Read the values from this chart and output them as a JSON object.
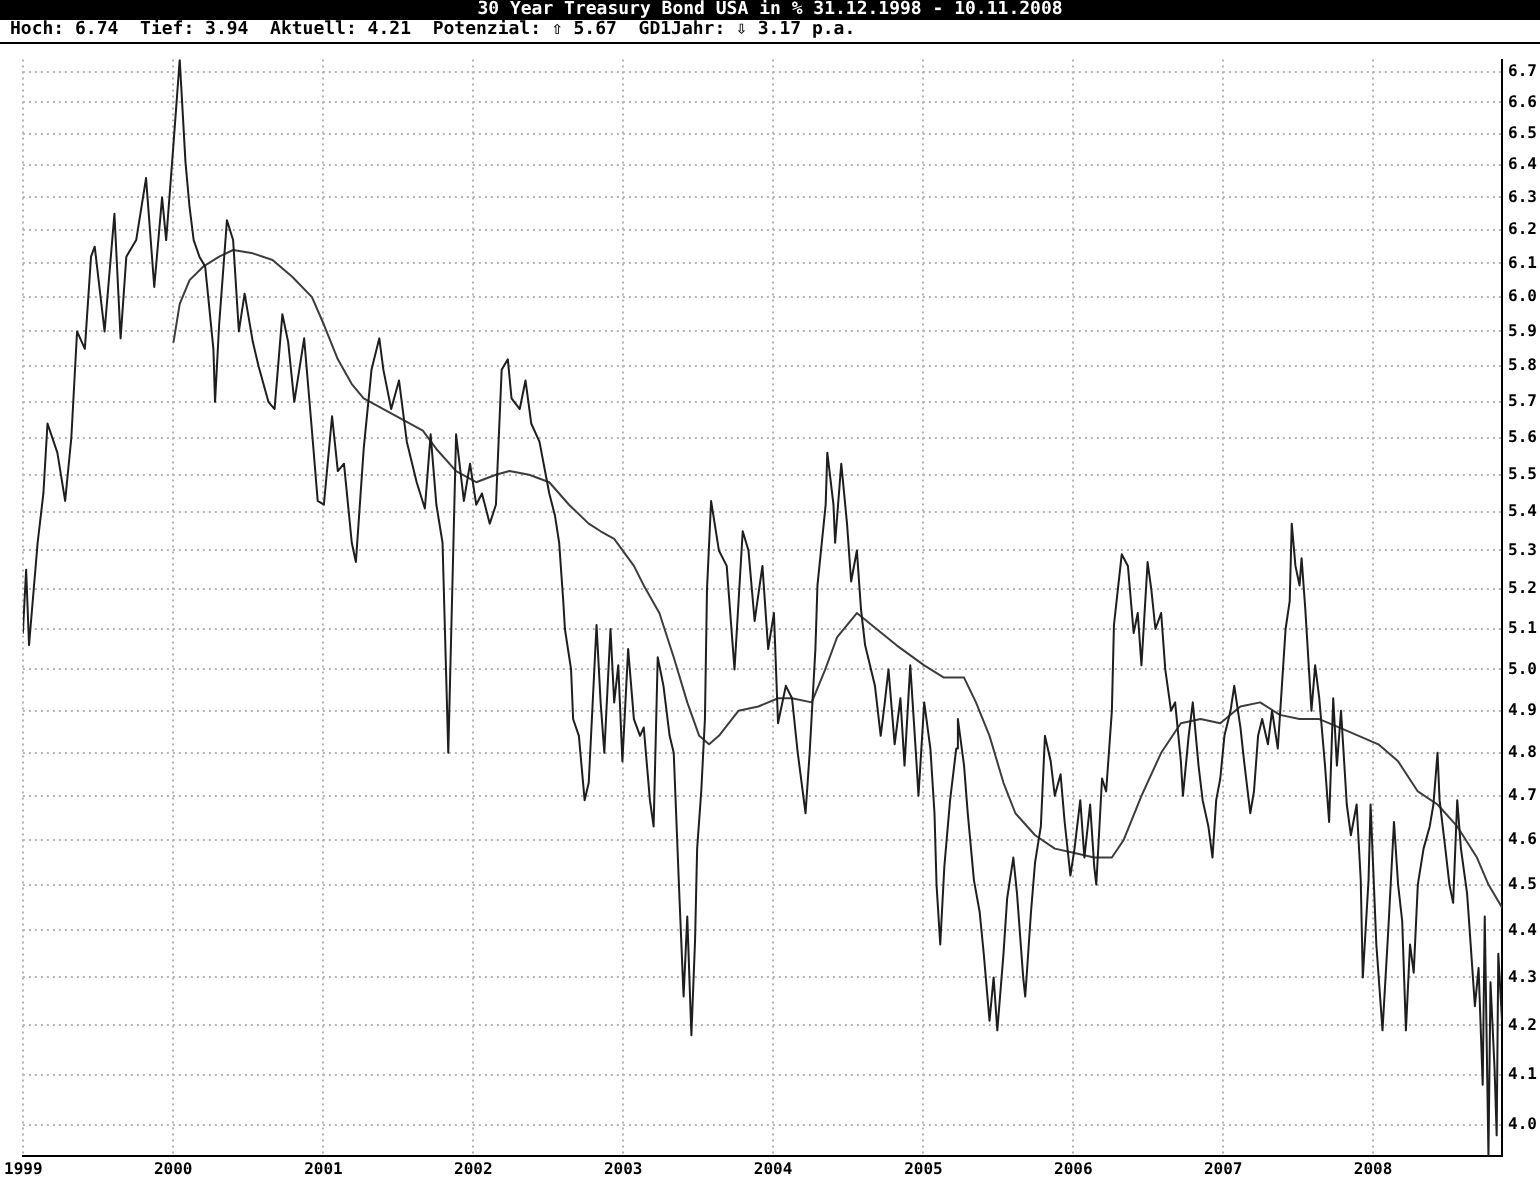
{
  "chart_data": {
    "type": "line",
    "title": "30 Year Treasury Bond USA in % 31.12.1998 - 10.11.2008",
    "subtitle": "Hoch: 6.74  Tief: 3.94  Aktuell: 4.21  Potenzial: ⇧ 5.67  GD1Jahr: ⇩ 3.17 p.a.",
    "log": true,
    "grid": true,
    "marker": "none",
    "xlim": [
      "1998-12-31",
      "2008-11-10"
    ],
    "xticks": [
      "1999",
      "2000",
      "2001",
      "2002",
      "2003",
      "2004",
      "2005",
      "2006",
      "2007",
      "2008"
    ],
    "ylim": [
      3.94,
      6.74
    ],
    "yticks": [
      {
        "value": 4.0,
        "label": "4.0"
      },
      4.1,
      4.2,
      4.3,
      4.4,
      4.5,
      4.6,
      4.7,
      4.8,
      4.9,
      {
        "value": 5.0,
        "label": "5.0"
      },
      5.1,
      5.2,
      5.3,
      5.4,
      5.5,
      5.6,
      5.7,
      5.8,
      5.9,
      {
        "value": 6.0,
        "label": "6.0"
      },
      6.1,
      6.2,
      6.3,
      6.4,
      6.5,
      6.6,
      6.7
    ],
    "series": [
      {
        "color": "#1e1e1e",
        "x": [
          "1998-12-31",
          "1999-01-08",
          "1999-01-15",
          "1999-02-05",
          "1999-02-19",
          "1999-03-01",
          "1999-03-25",
          "1999-04-13",
          "1999-04-28",
          "1999-05-12",
          "1999-05-31",
          "1999-06-15",
          "1999-06-24",
          "1999-07-18",
          "1999-08-11",
          "1999-08-26",
          "1999-09-09",
          "1999-10-03",
          "1999-10-27",
          "1999-11-16",
          "1999-12-05",
          "1999-12-15",
          "2000-01-02",
          "2000-01-17",
          "2000-01-31",
          "2000-02-10",
          "2000-02-20",
          "2000-03-05",
          "2000-03-19",
          "2000-04-08",
          "2000-04-12",
          "2000-04-22",
          "2000-05-11",
          "2000-05-26",
          "2000-06-09",
          "2000-06-23",
          "2000-07-13",
          "2000-07-27",
          "2000-08-20",
          "2000-09-04",
          "2000-09-23",
          "2000-10-07",
          "2000-10-22",
          "2000-11-15",
          "2000-12-04",
          "2000-12-18",
          "2001-01-02",
          "2001-01-22",
          "2001-02-05",
          "2001-02-20",
          "2001-03-11",
          "2001-03-21",
          "2001-04-09",
          "2001-04-28",
          "2001-05-17",
          "2001-05-27",
          "2001-06-15",
          "2001-07-04",
          "2001-07-23",
          "2001-08-16",
          "2001-09-05",
          "2001-09-19",
          "2001-10-03",
          "2001-10-18",
          "2001-11-01",
          "2001-11-20",
          "2001-12-09",
          "2001-12-24",
          "2002-01-08",
          "2002-01-22",
          "2002-02-10",
          "2002-02-25",
          "2002-03-11",
          "2002-03-26",
          "2002-04-04",
          "2002-04-24",
          "2002-05-08",
          "2002-05-22",
          "2002-06-11",
          "2002-07-05",
          "2002-07-19",
          "2002-07-29",
          "2002-08-08",
          "2002-08-12",
          "2002-08-27",
          "2002-09-01",
          "2002-09-15",
          "2002-09-29",
          "2002-10-09",
          "2002-10-28",
          "2002-11-07",
          "2002-11-16",
          "2002-12-01",
          "2002-12-10",
          "2002-12-20",
          "2002-12-30",
          "2003-01-13",
          "2003-01-27",
          "2003-02-11",
          "2003-02-20",
          "2003-03-07",
          "2003-03-16",
          "2003-03-26",
          "2003-04-09",
          "2003-04-24",
          "2003-05-04",
          "2003-05-18",
          "2003-05-28",
          "2003-06-06",
          "2003-06-16",
          "2003-06-25",
          "2003-06-30",
          "2003-07-10",
          "2003-07-19",
          "2003-07-24",
          "2003-08-03",
          "2003-08-22",
          "2003-09-10",
          "2003-09-29",
          "2003-10-19",
          "2003-11-02",
          "2003-11-17",
          "2003-12-06",
          "2003-12-20",
          "2004-01-03",
          "2004-01-13",
          "2004-02-01",
          "2004-02-16",
          "2004-03-01",
          "2004-03-20",
          "2004-03-30",
          "2004-04-13",
          "2004-04-18",
          "2004-05-08",
          "2004-05-12",
          "2004-05-27",
          "2004-05-31",
          "2004-06-15",
          "2004-06-29",
          "2004-07-09",
          "2004-07-23",
          "2004-08-02",
          "2004-08-12",
          "2004-09-05",
          "2004-09-19",
          "2004-09-29",
          "2004-10-08",
          "2004-10-23",
          "2004-11-06",
          "2004-11-16",
          "2004-11-30",
          "2004-12-15",
          "2004-12-20",
          "2005-01-03",
          "2005-01-18",
          "2005-01-28",
          "2005-02-02",
          "2005-02-11",
          "2005-02-21",
          "2005-03-07",
          "2005-03-22",
          "2005-03-26",
          "2005-04-10",
          "2005-04-19",
          "2005-05-04",
          "2005-05-18",
          "2005-05-28",
          "2005-06-11",
          "2005-06-21",
          "2005-06-30",
          "2005-07-15",
          "2005-07-24",
          "2005-08-08",
          "2005-08-17",
          "2005-09-01",
          "2005-09-06",
          "2005-09-20",
          "2005-09-30",
          "2005-10-14",
          "2005-10-24",
          "2005-11-07",
          "2005-11-17",
          "2005-12-01",
          "2005-12-11",
          "2005-12-25",
          "2006-01-04",
          "2006-01-18",
          "2006-01-28",
          "2006-02-11",
          "2006-02-21",
          "2006-02-26",
          "2006-03-12",
          "2006-03-22",
          "2006-04-05",
          "2006-04-10",
          "2006-04-29",
          "2006-05-14",
          "2006-05-28",
          "2006-06-07",
          "2006-06-16",
          "2006-07-01",
          "2006-07-10",
          "2006-07-20",
          "2006-08-03",
          "2006-08-13",
          "2006-08-27",
          "2006-09-06",
          "2006-09-20",
          "2006-09-25",
          "2006-10-09",
          "2006-10-19",
          "2006-11-02",
          "2006-11-12",
          "2006-11-26",
          "2006-12-06",
          "2006-12-15",
          "2006-12-25",
          "2007-01-04",
          "2007-01-19",
          "2007-01-28",
          "2007-02-12",
          "2007-02-21",
          "2007-03-08",
          "2007-03-17",
          "2007-03-27",
          "2007-04-06",
          "2007-04-20",
          "2007-04-30",
          "2007-05-14",
          "2007-05-24",
          "2007-06-02",
          "2007-06-12",
          "2007-06-17",
          "2007-06-26",
          "2007-07-06",
          "2007-07-11",
          "2007-07-20",
          "2007-08-04",
          "2007-08-13",
          "2007-08-23",
          "2007-09-06",
          "2007-09-16",
          "2007-09-26",
          "2007-10-05",
          "2007-10-15",
          "2007-10-29",
          "2007-11-08",
          "2007-11-22",
          "2007-12-02",
          "2007-12-07",
          "2007-12-21",
          "2007-12-26",
          "2008-01-09",
          "2008-01-24",
          "2008-02-07",
          "2008-02-21",
          "2008-03-02",
          "2008-03-12",
          "2008-03-21",
          "2008-03-31",
          "2008-04-09",
          "2008-04-19",
          "2008-05-03",
          "2008-05-18",
          "2008-05-27",
          "2008-06-06",
          "2008-06-11",
          "2008-06-25",
          "2008-07-05",
          "2008-07-14",
          "2008-07-24",
          "2008-08-02",
          "2008-08-17",
          "2008-08-21",
          "2008-09-05",
          "2008-09-14",
          "2008-09-24",
          "2008-09-29",
          "2008-10-08",
          "2008-10-13",
          "2008-10-23",
          "2008-10-28",
          "2008-11-01",
          "2008-11-10"
        ],
        "values": [
          5.09,
          5.25,
          5.06,
          5.32,
          5.45,
          5.64,
          5.56,
          5.43,
          5.6,
          5.9,
          5.85,
          6.12,
          6.15,
          5.9,
          6.25,
          5.88,
          6.12,
          6.17,
          6.36,
          6.03,
          6.3,
          6.17,
          6.47,
          6.74,
          6.41,
          6.27,
          6.17,
          6.12,
          6.09,
          5.85,
          5.7,
          5.92,
          6.23,
          6.17,
          5.9,
          6.01,
          5.87,
          5.8,
          5.7,
          5.68,
          5.95,
          5.87,
          5.7,
          5.88,
          5.62,
          5.43,
          5.42,
          5.66,
          5.51,
          5.53,
          5.32,
          5.27,
          5.57,
          5.79,
          5.88,
          5.79,
          5.68,
          5.76,
          5.59,
          5.48,
          5.41,
          5.61,
          5.42,
          5.32,
          4.8,
          5.61,
          5.43,
          5.53,
          5.42,
          5.45,
          5.37,
          5.42,
          5.79,
          5.82,
          5.71,
          5.68,
          5.76,
          5.64,
          5.59,
          5.45,
          5.39,
          5.32,
          5.17,
          5.1,
          5.0,
          4.88,
          4.84,
          4.69,
          4.73,
          5.11,
          4.92,
          4.8,
          5.1,
          4.92,
          5.01,
          4.78,
          5.05,
          4.88,
          4.84,
          4.86,
          4.69,
          4.63,
          5.03,
          4.96,
          4.84,
          4.8,
          4.47,
          4.26,
          4.43,
          4.18,
          4.38,
          4.58,
          4.71,
          4.88,
          5.2,
          5.43,
          5.3,
          5.26,
          5.0,
          5.35,
          5.3,
          5.12,
          5.26,
          5.05,
          5.14,
          4.87,
          4.96,
          4.93,
          4.8,
          4.66,
          4.8,
          5.05,
          5.21,
          5.42,
          5.56,
          5.42,
          5.32,
          5.53,
          5.37,
          5.22,
          5.3,
          5.15,
          5.06,
          4.96,
          4.84,
          4.92,
          5.0,
          4.82,
          4.93,
          4.77,
          5.01,
          4.78,
          4.7,
          4.92,
          4.81,
          4.66,
          4.5,
          4.37,
          4.54,
          4.69,
          4.81,
          4.88,
          4.77,
          4.66,
          4.51,
          4.44,
          4.35,
          4.21,
          4.3,
          4.19,
          4.35,
          4.47,
          4.56,
          4.48,
          4.3,
          4.26,
          4.44,
          4.55,
          4.63,
          4.84,
          4.78,
          4.7,
          4.75,
          4.64,
          4.52,
          4.58,
          4.69,
          4.56,
          4.68,
          4.54,
          4.5,
          4.74,
          4.71,
          4.9,
          5.11,
          5.29,
          5.26,
          5.09,
          5.14,
          5.01,
          5.27,
          5.2,
          5.1,
          5.14,
          5.0,
          4.9,
          4.92,
          4.78,
          4.7,
          4.84,
          4.92,
          4.77,
          4.69,
          4.63,
          4.56,
          4.69,
          4.74,
          4.84,
          4.9,
          4.96,
          4.86,
          4.78,
          4.66,
          4.71,
          4.84,
          4.88,
          4.82,
          4.9,
          4.81,
          4.96,
          5.1,
          5.17,
          5.37,
          5.26,
          5.21,
          5.28,
          5.15,
          4.9,
          5.01,
          4.93,
          4.77,
          4.64,
          4.93,
          4.77,
          4.9,
          4.68,
          4.61,
          4.68,
          4.51,
          4.3,
          4.51,
          4.68,
          4.37,
          4.19,
          4.4,
          4.64,
          4.5,
          4.42,
          4.19,
          4.37,
          4.31,
          4.5,
          4.58,
          4.63,
          4.68,
          4.8,
          4.69,
          4.58,
          4.5,
          4.46,
          4.69,
          4.58,
          4.48,
          4.43,
          4.24,
          4.32,
          4.08,
          4.43,
          3.94,
          4.29,
          4.11,
          3.98,
          4.35,
          4.21
        ]
      },
      {
        "color": "#3c3c3c",
        "x": [
          "2000-01-02",
          "2000-01-17",
          "2000-02-10",
          "2000-03-14",
          "2000-04-22",
          "2000-05-26",
          "2000-07-13",
          "2000-08-30",
          "2000-10-17",
          "2000-12-04",
          "2001-01-02",
          "2001-02-05",
          "2001-03-11",
          "2001-04-09",
          "2001-05-27",
          "2001-07-14",
          "2001-08-31",
          "2001-10-03",
          "2001-11-20",
          "2002-01-08",
          "2002-02-25",
          "2002-03-30",
          "2002-05-17",
          "2002-07-05",
          "2002-08-22",
          "2002-10-09",
          "2002-11-07",
          "2002-12-10",
          "2003-01-27",
          "2003-02-20",
          "2003-03-30",
          "2003-05-04",
          "2003-06-06",
          "2003-07-05",
          "2003-07-29",
          "2003-08-22",
          "2003-10-09",
          "2003-11-26",
          "2004-01-13",
          "2004-02-16",
          "2004-04-04",
          "2004-05-07",
          "2004-06-05",
          "2004-07-23",
          "2004-09-09",
          "2004-10-27",
          "2005-01-03",
          "2005-02-20",
          "2005-04-10",
          "2005-05-09",
          "2005-06-11",
          "2005-07-15",
          "2005-08-13",
          "2005-09-30",
          "2005-11-17",
          "2006-01-04",
          "2006-02-21",
          "2006-04-05",
          "2006-05-04",
          "2006-06-16",
          "2006-08-03",
          "2006-09-20",
          "2006-11-07",
          "2006-12-25",
          "2007-02-12",
          "2007-04-01",
          "2007-05-19",
          "2007-07-06",
          "2007-08-23",
          "2007-10-10",
          "2007-11-27",
          "2008-01-14",
          "2008-03-02",
          "2008-04-19",
          "2008-06-06",
          "2008-07-24",
          "2008-09-10",
          "2008-10-08",
          "2008-11-10"
        ],
        "values": [
          5.87,
          5.98,
          6.05,
          6.09,
          6.12,
          6.14,
          6.13,
          6.11,
          6.06,
          6.0,
          5.92,
          5.82,
          5.75,
          5.71,
          5.68,
          5.65,
          5.62,
          5.57,
          5.51,
          5.48,
          5.5,
          5.51,
          5.5,
          5.48,
          5.42,
          5.37,
          5.35,
          5.33,
          5.26,
          5.21,
          5.14,
          5.03,
          4.92,
          4.84,
          4.82,
          4.84,
          4.9,
          4.91,
          4.93,
          4.93,
          4.92,
          5.0,
          5.08,
          5.14,
          5.1,
          5.06,
          5.01,
          4.98,
          4.98,
          4.92,
          4.84,
          4.73,
          4.66,
          4.61,
          4.58,
          4.57,
          4.56,
          4.56,
          4.6,
          4.7,
          4.8,
          4.87,
          4.88,
          4.87,
          4.91,
          4.92,
          4.89,
          4.88,
          4.88,
          4.86,
          4.84,
          4.82,
          4.78,
          4.71,
          4.68,
          4.63,
          4.56,
          4.5,
          4.45
        ]
      }
    ]
  }
}
